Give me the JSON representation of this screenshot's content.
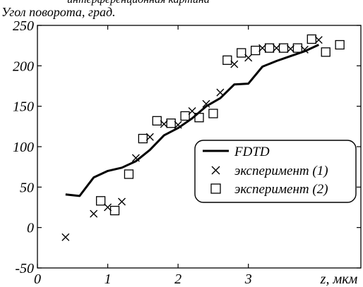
{
  "chart_data": {
    "type": "scatter",
    "top_text": "интерференционная картина",
    "ylabel": "Угол поворота, град.",
    "xlabel": "z, мкм",
    "xlim": [
      0,
      4.6
    ],
    "ylim": [
      -50,
      250
    ],
    "xticks": [
      0,
      1,
      2,
      3
    ],
    "yticks": [
      -50,
      0,
      50,
      100,
      150,
      200,
      250
    ],
    "legend_position": "right",
    "series": [
      {
        "name": "FDTD",
        "kind": "line",
        "x": [
          0.4,
          0.6,
          0.8,
          1.0,
          1.2,
          1.4,
          1.6,
          1.8,
          2.0,
          2.2,
          2.4,
          2.6,
          2.8,
          3.0,
          3.2,
          3.4,
          3.6,
          3.8,
          4.0
        ],
        "y": [
          41,
          39,
          62,
          70,
          74,
          82,
          96,
          114,
          123,
          135,
          150,
          160,
          177,
          178,
          199,
          206,
          212,
          218,
          226
        ]
      },
      {
        "name": "эксперимент (1)",
        "kind": "x-marker",
        "x": [
          0.4,
          0.8,
          1.0,
          1.2,
          1.4,
          1.6,
          1.8,
          2.0,
          2.2,
          2.4,
          2.6,
          2.8,
          3.0,
          3.2,
          3.4,
          3.6,
          3.8,
          4.0
        ],
        "y": [
          -12,
          17,
          25,
          32,
          86,
          112,
          128,
          127,
          144,
          153,
          167,
          202,
          210,
          222,
          222,
          221,
          220,
          232
        ]
      },
      {
        "name": "эксперимент (2)",
        "kind": "square-marker",
        "x": [
          0.9,
          1.1,
          1.3,
          1.5,
          1.7,
          1.9,
          2.1,
          2.3,
          2.5,
          2.7,
          2.9,
          3.1,
          3.3,
          3.5,
          3.7,
          3.9,
          4.1,
          4.3
        ],
        "y": [
          33,
          21,
          66,
          110,
          132,
          129,
          138,
          136,
          141,
          207,
          216,
          219,
          222,
          222,
          222,
          233,
          217,
          226
        ]
      }
    ]
  }
}
